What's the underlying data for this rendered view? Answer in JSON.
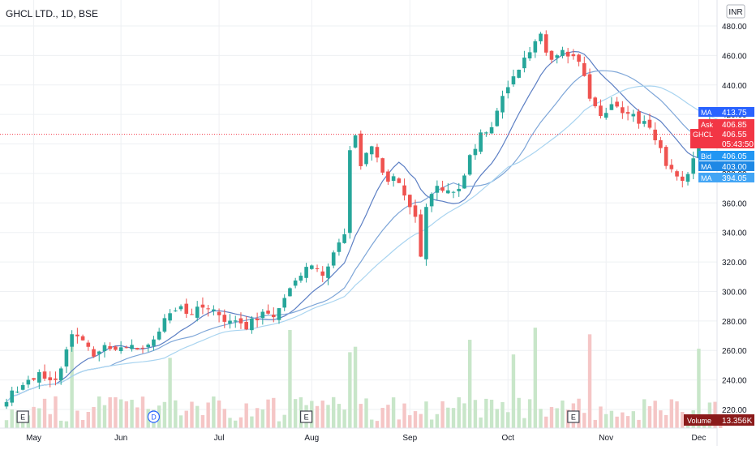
{
  "header": {
    "symbol_line": "GHCL LTD., 1D, BSE",
    "currency_button": "INR"
  },
  "price_axis": {
    "ticks": [
      "480.00",
      "460.00",
      "440.00",
      "420.00",
      "400.00",
      "380.00",
      "360.00",
      "340.00",
      "320.00",
      "300.00",
      "280.00",
      "260.00",
      "240.00",
      "220.00"
    ]
  },
  "time_axis": {
    "labels": [
      "May",
      "Jun",
      "Jul",
      "Aug",
      "Sep",
      "Oct",
      "Nov",
      "Dec"
    ]
  },
  "price_tags": [
    {
      "label": "MA",
      "value": "413.75",
      "color": "#2962ff"
    },
    {
      "label": "Ask",
      "value": "406.85",
      "color": "#f23645"
    },
    {
      "label": "GHCL",
      "value": "406.55",
      "sub": "05:43:50",
      "color": "#f23645"
    },
    {
      "label": "Bid",
      "value": "406.05",
      "color": "#2196f3"
    },
    {
      "label": "MA",
      "value": "403.00",
      "color": "#1e88e5"
    },
    {
      "label": "MA",
      "value": "394.05",
      "color": "#42a5f5"
    }
  ],
  "volume_tag": {
    "label": "Volume",
    "value": "13.356K",
    "color": "#8b1a1a"
  },
  "event_markers": [
    {
      "text": "E",
      "kind": "earnings"
    },
    {
      "text": "D",
      "kind": "dividend"
    },
    {
      "text": "E",
      "kind": "earnings"
    },
    {
      "text": "E",
      "kind": "earnings"
    }
  ],
  "colors": {
    "up": "#26a69a",
    "down": "#ef5350",
    "up_vol": "#c8e6c9",
    "down_vol": "#f5c6c6",
    "ma_fast": "#5c7fc4",
    "ma_mid": "#7ea6d8",
    "ma_slow": "#a9d4f0"
  },
  "chart_data": {
    "type": "candlestick",
    "title": "GHCL LTD., 1D, BSE",
    "currency": "INR",
    "ylim": [
      214,
      486
    ],
    "y_ticks": [
      480,
      460,
      440,
      420,
      400,
      380,
      360,
      340,
      320,
      300,
      280,
      260,
      240,
      220
    ],
    "last_price": 406.55,
    "x_labels": [
      "May",
      "Jun",
      "Jul",
      "Aug",
      "Sep",
      "Oct",
      "Nov",
      "Dec"
    ],
    "anchors": [
      [
        0,
        228
      ],
      [
        3,
        236
      ],
      [
        6,
        244
      ],
      [
        9,
        242
      ],
      [
        10,
        246
      ],
      [
        12,
        270
      ],
      [
        14,
        265
      ],
      [
        16,
        256
      ],
      [
        18,
        262
      ],
      [
        20,
        260
      ],
      [
        22,
        262
      ],
      [
        24,
        261
      ],
      [
        26,
        264
      ],
      [
        28,
        274
      ],
      [
        30,
        286
      ],
      [
        32,
        288
      ],
      [
        34,
        284
      ],
      [
        36,
        292
      ],
      [
        38,
        288
      ],
      [
        40,
        282
      ],
      [
        42,
        280
      ],
      [
        44,
        276
      ],
      [
        46,
        283
      ],
      [
        48,
        284
      ],
      [
        50,
        287
      ],
      [
        52,
        304
      ],
      [
        54,
        312
      ],
      [
        56,
        320
      ],
      [
        58,
        308
      ],
      [
        60,
        325
      ],
      [
        62,
        340
      ],
      [
        63,
        395
      ],
      [
        64,
        406
      ],
      [
        65,
        385
      ],
      [
        67,
        400
      ],
      [
        69,
        378
      ],
      [
        71,
        376
      ],
      [
        73,
        368
      ],
      [
        75,
        349
      ],
      [
        76,
        325
      ],
      [
        77,
        355
      ],
      [
        79,
        372
      ],
      [
        81,
        366
      ],
      [
        83,
        370
      ],
      [
        85,
        390
      ],
      [
        87,
        405
      ],
      [
        89,
        412
      ],
      [
        91,
        430
      ],
      [
        93,
        445
      ],
      [
        95,
        458
      ],
      [
        97,
        470
      ],
      [
        98,
        475
      ],
      [
        99,
        463
      ],
      [
        100,
        459
      ],
      [
        102,
        465
      ],
      [
        104,
        459
      ],
      [
        106,
        448
      ],
      [
        107,
        430
      ],
      [
        109,
        418
      ],
      [
        111,
        426
      ],
      [
        113,
        423
      ],
      [
        115,
        418
      ],
      [
        117,
        415
      ],
      [
        119,
        405
      ],
      [
        121,
        384
      ],
      [
        123,
        376
      ],
      [
        125,
        378
      ],
      [
        127,
        401
      ],
      [
        129,
        413
      ],
      [
        131,
        407
      ]
    ],
    "series": [
      {
        "name": "MA",
        "period": 10
      },
      {
        "name": "MA",
        "period": 20
      },
      {
        "name": "MA",
        "period": 30
      }
    ]
  }
}
